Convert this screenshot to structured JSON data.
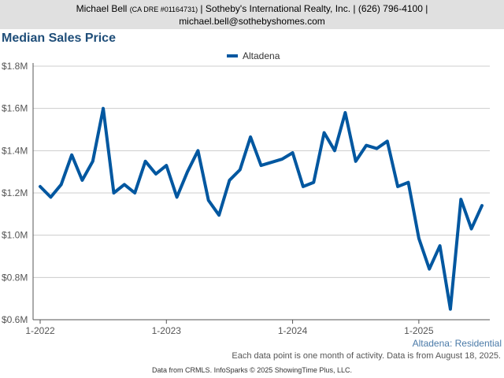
{
  "header": {
    "agent_name": "Michael Bell",
    "license": "(CA DRE #01164731)",
    "line1_rest": "| Sotheby's International Realty, Inc. | (626) 796-4100 |",
    "email": "michael.bell@sothebyshomes.com"
  },
  "page_title": "Median Sales Price",
  "footer": {
    "note": "Each data point is one month of activity. Data is from August 18, 2025.",
    "source": "Data from CRMLS. InfoSparks © 2025 ShowingTime Plus, LLC."
  },
  "colors": {
    "series": "#0057a0",
    "grid": "#cccccc",
    "axis": "#555555"
  },
  "chart_data": {
    "type": "line",
    "title": "",
    "xlabel": "",
    "ylabel": "",
    "ylim": [
      600000,
      1800000
    ],
    "y_ticks": [
      600000,
      800000,
      1000000,
      1200000,
      1400000,
      1600000,
      1800000
    ],
    "y_tick_labels": [
      "$0.6M",
      "$0.8M",
      "$1.0M",
      "$1.2M",
      "$1.4M",
      "$1.6M",
      "$1.8M"
    ],
    "x_ticks": [
      "2022-01",
      "2023-01",
      "2024-01",
      "2025-01"
    ],
    "x_tick_labels": [
      "1-2022",
      "1-2023",
      "1-2024",
      "1-2025"
    ],
    "x_range": [
      "2022-01",
      "2025-07"
    ],
    "grid": true,
    "legend": "top-center",
    "series_caption": "Altadena: Residential",
    "series": [
      {
        "name": "Altadena",
        "x": [
          "2022-01",
          "2022-02",
          "2022-03",
          "2022-04",
          "2022-05",
          "2022-06",
          "2022-07",
          "2022-08",
          "2022-09",
          "2022-10",
          "2022-11",
          "2022-12",
          "2023-01",
          "2023-02",
          "2023-03",
          "2023-04",
          "2023-05",
          "2023-06",
          "2023-07",
          "2023-08",
          "2023-09",
          "2023-10",
          "2023-11",
          "2023-12",
          "2024-01",
          "2024-02",
          "2024-03",
          "2024-04",
          "2024-05",
          "2024-06",
          "2024-07",
          "2024-08",
          "2024-09",
          "2024-10",
          "2024-11",
          "2024-12",
          "2025-01",
          "2025-02",
          "2025-03",
          "2025-04",
          "2025-05",
          "2025-06",
          "2025-07"
        ],
        "values": [
          1230000,
          1180000,
          1240000,
          1380000,
          1260000,
          1350000,
          1600000,
          1200000,
          1240000,
          1200000,
          1350000,
          1290000,
          1330000,
          1180000,
          1300000,
          1400000,
          1165000,
          1095000,
          1260000,
          1310000,
          1465000,
          1330000,
          1345000,
          1360000,
          1390000,
          1230000,
          1250000,
          1485000,
          1400000,
          1580000,
          1350000,
          1425000,
          1410000,
          1445000,
          1230000,
          1250000,
          985000,
          840000,
          950000,
          650000,
          1170000,
          1030000,
          1140000
        ]
      }
    ]
  }
}
